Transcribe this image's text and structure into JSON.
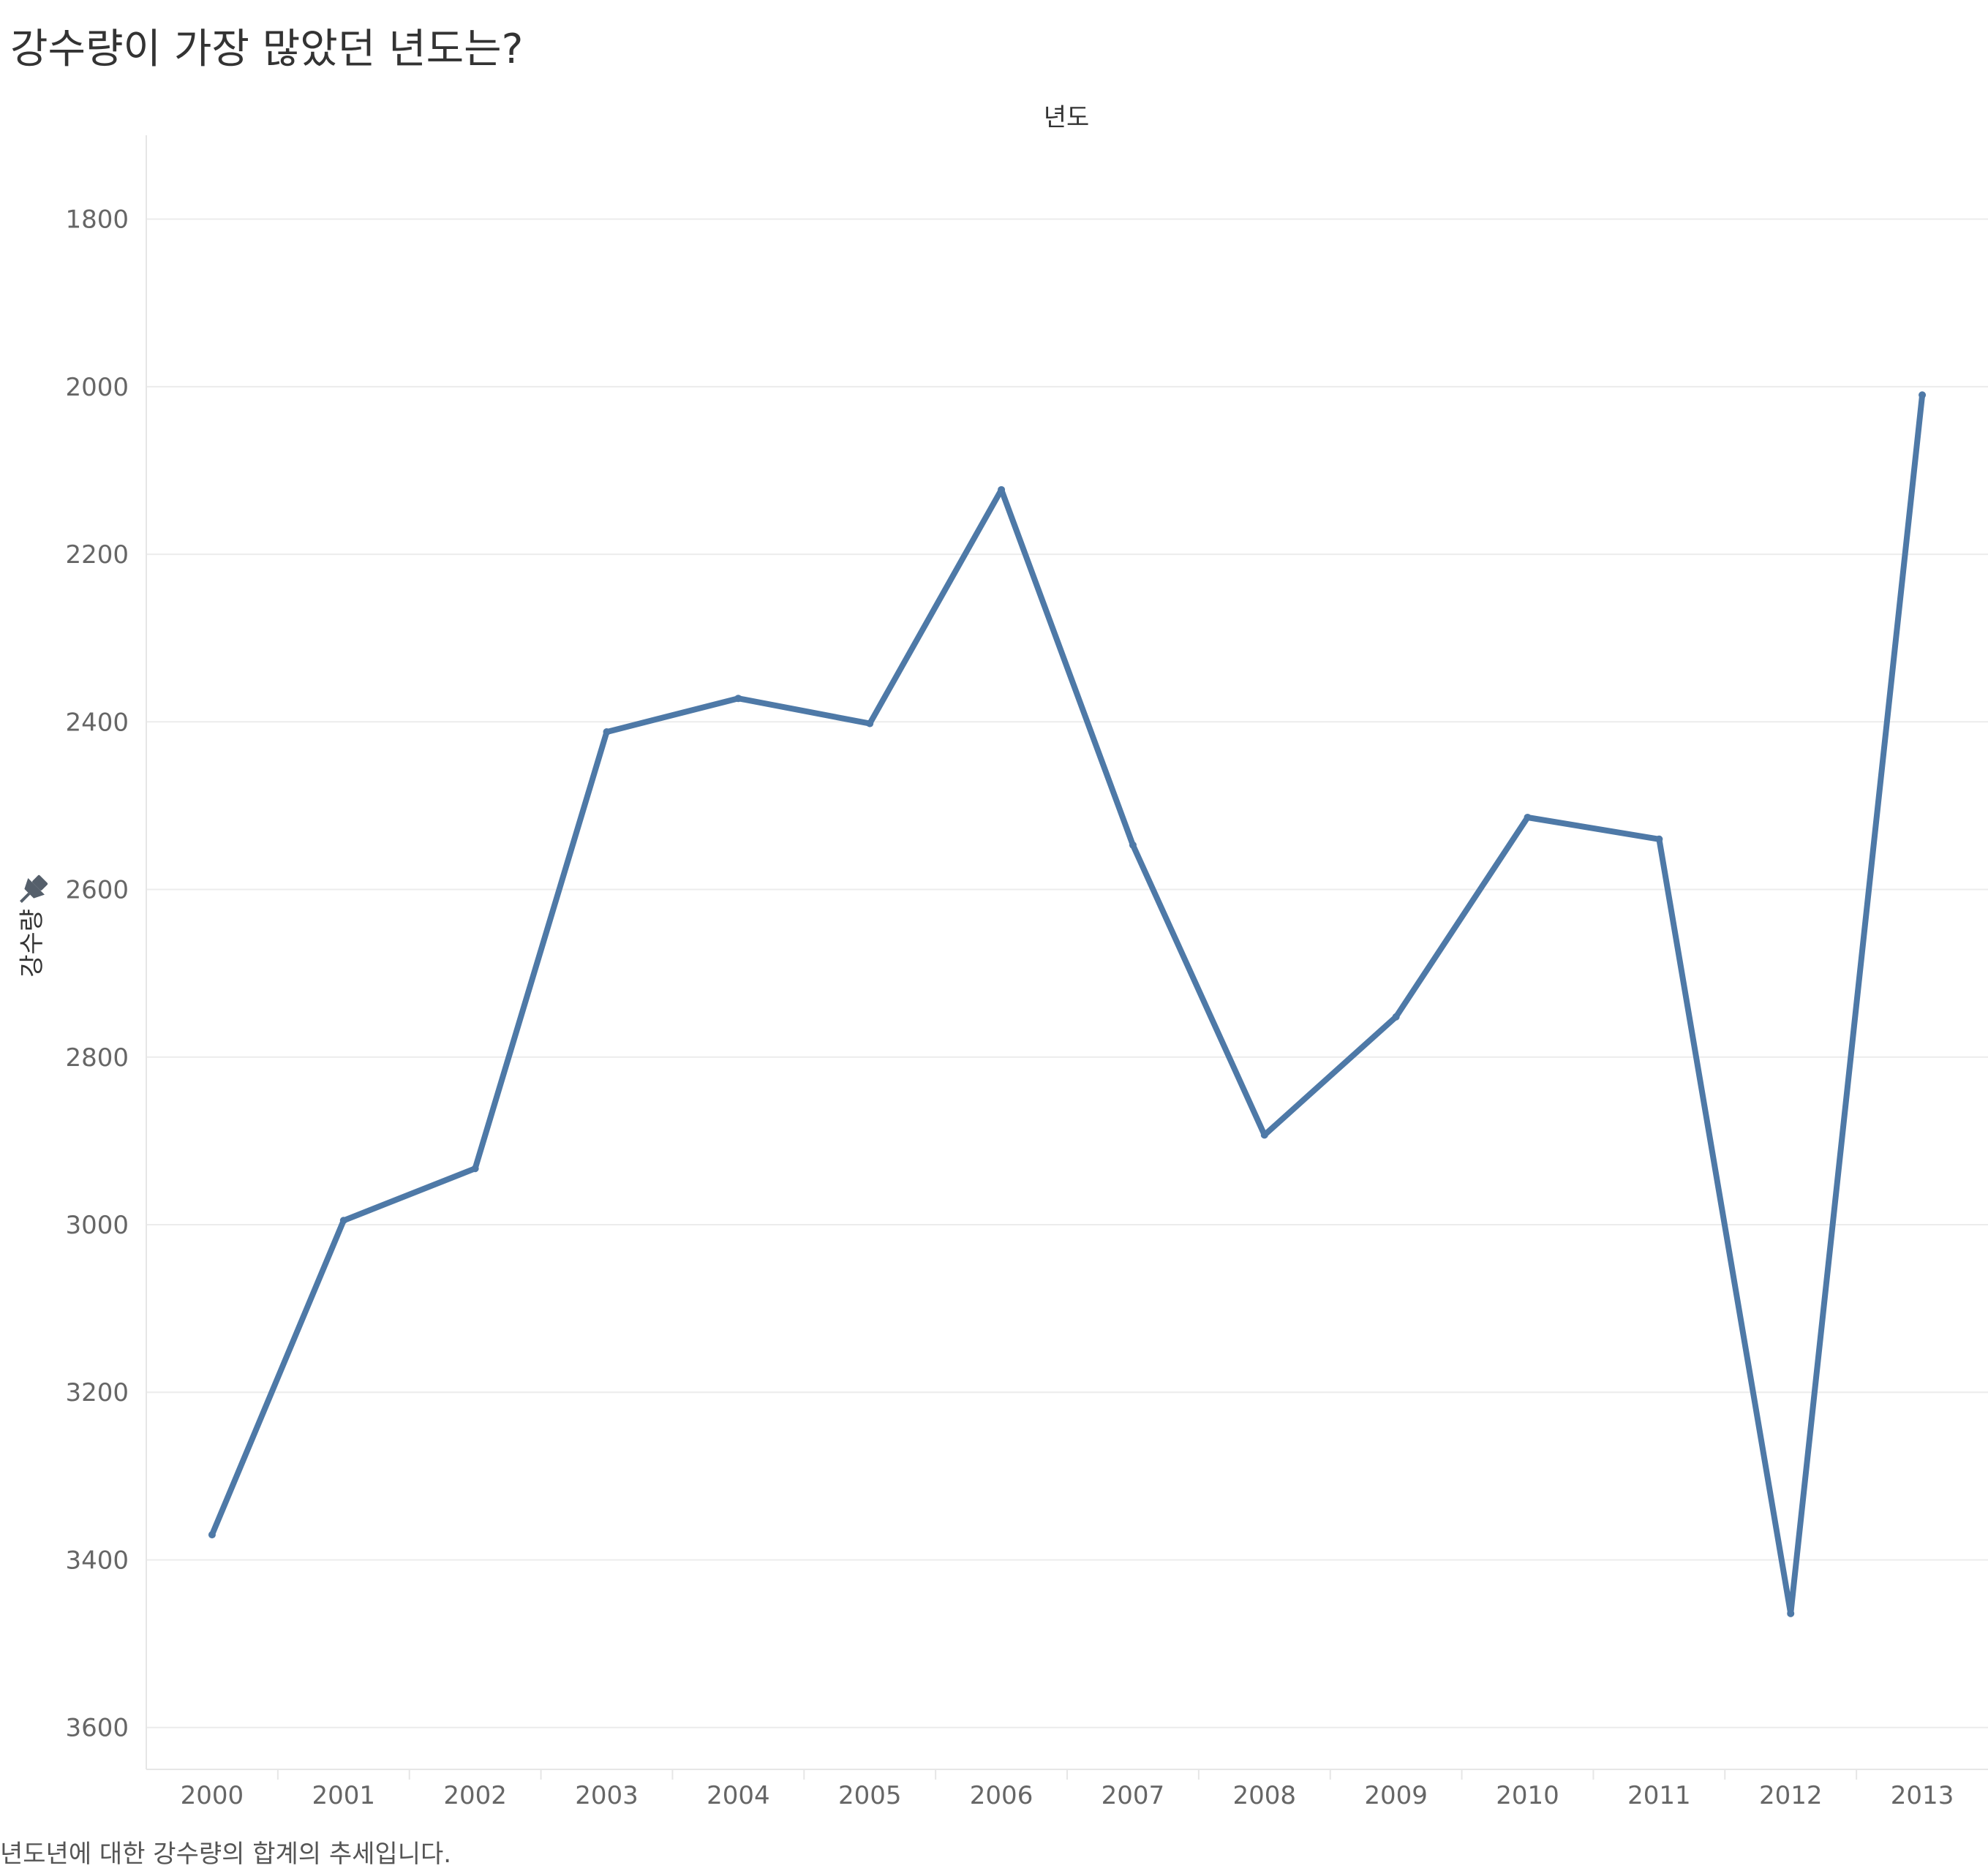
{
  "chart_data": {
    "type": "line",
    "title": "강수량이 가장 많았던 년도는?",
    "caption": "년도년에 대한 강수량의 합계의 추세입니다.",
    "xlabel": "년도",
    "ylabel": "강수량",
    "y_reversed": true,
    "ylim": [
      1700,
      3650
    ],
    "yticks": [
      1800,
      2000,
      2200,
      2400,
      2600,
      2800,
      3000,
      3200,
      3400,
      3600
    ],
    "grid": true,
    "legend": "none",
    "line_color": "#4e79a7",
    "categories": [
      "2000",
      "2001",
      "2002",
      "2003",
      "2004",
      "2005",
      "2006",
      "2007",
      "2008",
      "2009",
      "2010",
      "2011",
      "2012",
      "2013"
    ],
    "series": [
      {
        "values": [
          3370,
          2995,
          2933,
          2412,
          2372,
          2402,
          2123,
          2547,
          2893,
          2752,
          2514,
          2540,
          3464,
          2010
        ]
      }
    ]
  }
}
